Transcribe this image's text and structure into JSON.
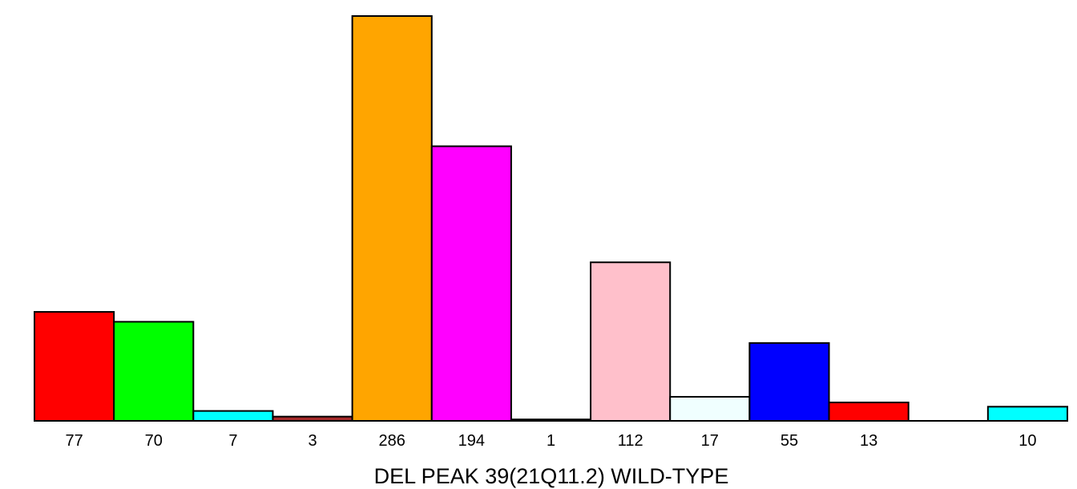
{
  "chart_data": {
    "type": "bar",
    "title": "",
    "xlabel": "DEL PEAK 39(21Q11.2) WILD-TYPE",
    "ylabel": "",
    "ylim": [
      0,
      286
    ],
    "grid": false,
    "legend": "none",
    "bars": [
      {
        "label": "77",
        "value": 77,
        "color": "#ff0000"
      },
      {
        "label": "70",
        "value": 70,
        "color": "#00ff00"
      },
      {
        "label": "7",
        "value": 7,
        "color": "#00ffff"
      },
      {
        "label": "3",
        "value": 3,
        "color": "#a52a2a"
      },
      {
        "label": "286",
        "value": 286,
        "color": "#ffa500"
      },
      {
        "label": "194",
        "value": 194,
        "color": "#ff00ff"
      },
      {
        "label": "1",
        "value": 1,
        "color": "#8b0000"
      },
      {
        "label": "112",
        "value": 112,
        "color": "#ffc0cb"
      },
      {
        "label": "17",
        "value": 17,
        "color": "#f0ffff"
      },
      {
        "label": "55",
        "value": 55,
        "color": "#0000ff"
      },
      {
        "label": "13",
        "value": 13,
        "color": "#ff0000"
      },
      {
        "label": "",
        "value": 0,
        "color": "#00ff00"
      },
      {
        "label": "10",
        "value": 10,
        "color": "#00ffff"
      }
    ]
  }
}
